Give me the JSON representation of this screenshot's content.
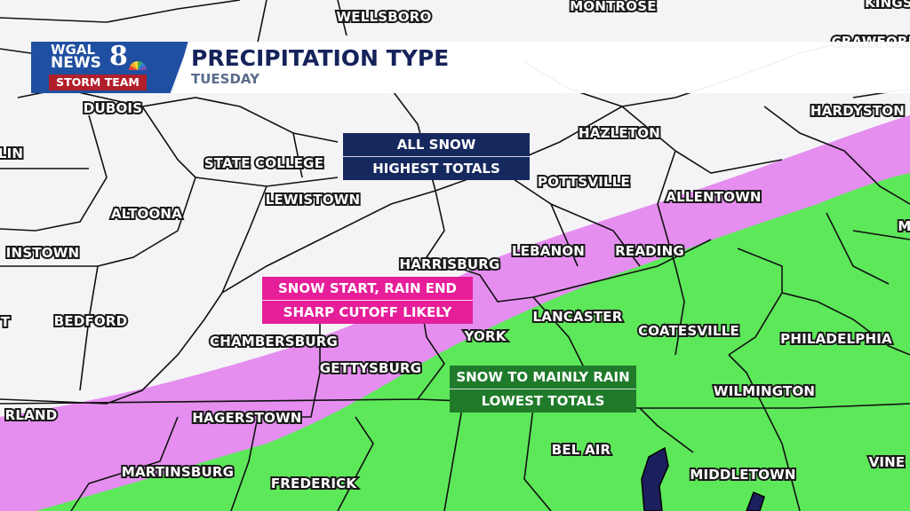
{
  "header": {
    "logo": {
      "line1": "WGAL",
      "line2": "NEWS",
      "channel": "8",
      "tagline": "STORM TEAM"
    },
    "title": "PRECIPITATION TYPE",
    "subtitle": "TUESDAY"
  },
  "colors": {
    "snow": "#ffffff",
    "mix": "#e58ef0",
    "rain": "#5de85a",
    "water": "#1c1f5e",
    "snow_box": "#16295e",
    "mix_box": "#e61e99",
    "rain_box": "#1f7b2a"
  },
  "callouts": {
    "snow": {
      "line1": "ALL SNOW",
      "line2": "HIGHEST TOTALS"
    },
    "mix": {
      "line1": "SNOW START, RAIN END",
      "line2": "SHARP CUTOFF LIKELY"
    },
    "rain": {
      "line1": "SNOW TO MAINLY RAIN",
      "line2": "LOWEST TOTALS"
    }
  },
  "cities": [
    "WELLSBORO",
    "MONTROSE",
    "KINGS",
    "CRAWFORD",
    "DUBOIS",
    "HAZLETON",
    "HARDYSTON",
    "LIN",
    "STATE COLLEGE",
    "POTTSVILLE",
    "ALLENTOWN",
    "LEWISTOWN",
    "ALTOONA",
    "INSTOWN",
    "LEBANON",
    "READING",
    "HARRISBURG",
    "M",
    "T",
    "BEDFORD",
    "CHAMBERSBURG",
    "LANCASTER",
    "YORK",
    "COATESVILLE",
    "PHILADELPHIA",
    "GETTYSBURG",
    "WILMINGTON",
    "RLAND",
    "HAGERSTOWN",
    "BEL AIR",
    "MARTINSBURG",
    "FREDERICK",
    "MIDDLETOWN",
    "VINE"
  ]
}
